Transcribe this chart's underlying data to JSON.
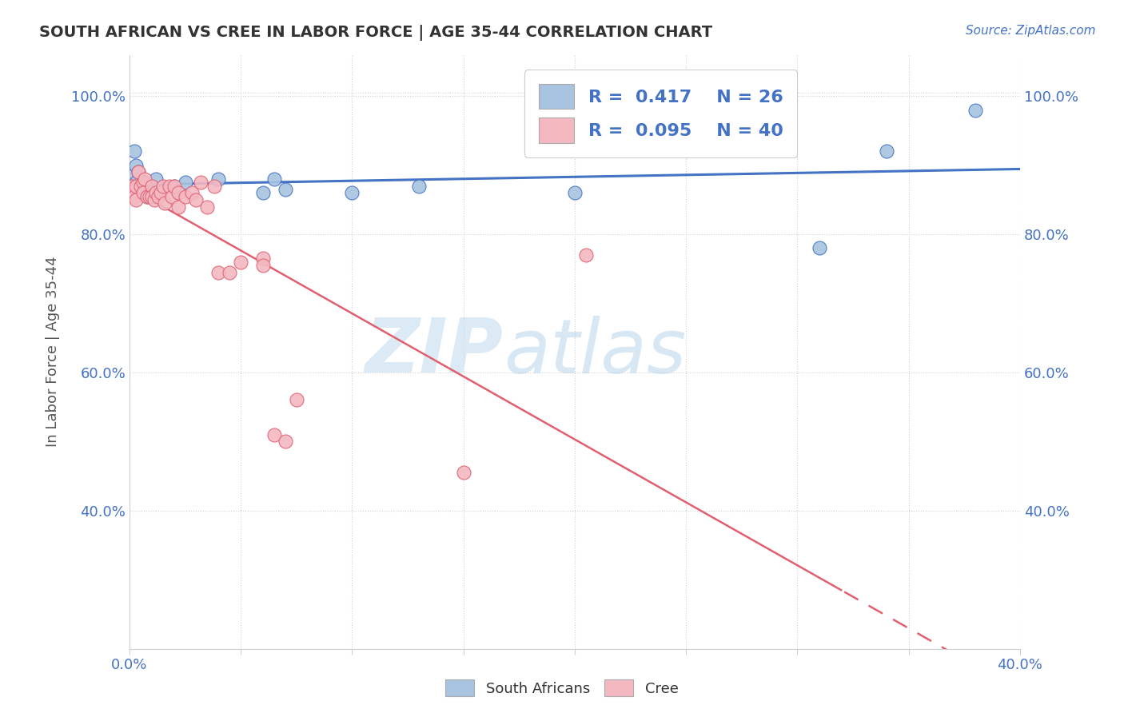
{
  "title": "SOUTH AFRICAN VS CREE IN LABOR FORCE | AGE 35-44 CORRELATION CHART",
  "source_text": "Source: ZipAtlas.com",
  "ylabel": "In Labor Force | Age 35-44",
  "xlim": [
    0.0,
    0.4
  ],
  "ylim": [
    0.2,
    1.06
  ],
  "x_ticks": [
    0.0,
    0.05,
    0.1,
    0.15,
    0.2,
    0.25,
    0.3,
    0.35,
    0.4
  ],
  "y_ticks": [
    0.4,
    0.6,
    0.8,
    1.0
  ],
  "x_tick_labels": [
    "0.0%",
    "",
    "",
    "",
    "",
    "",
    "",
    "",
    "40.0%"
  ],
  "y_tick_labels": [
    "40.0%",
    "60.0%",
    "80.0%",
    "100.0%"
  ],
  "sa_R": 0.417,
  "sa_N": 26,
  "cree_R": 0.095,
  "cree_N": 40,
  "sa_color": "#a8c4e0",
  "sa_line_color": "#4472c4",
  "cree_color": "#f4b8c1",
  "cree_line_color": "#e06070",
  "legend_label_sa": "South Africans",
  "legend_label_cree": "Cree",
  "watermark_zip": "ZIP",
  "watermark_atlas": "atlas",
  "sa_x": [
    0.001,
    0.002,
    0.002,
    0.003,
    0.003,
    0.004,
    0.005,
    0.005,
    0.006,
    0.007,
    0.008,
    0.009,
    0.01,
    0.012,
    0.02,
    0.025,
    0.04,
    0.06,
    0.065,
    0.07,
    0.1,
    0.13,
    0.2,
    0.31,
    0.34,
    0.38
  ],
  "sa_y": [
    0.885,
    0.92,
    0.87,
    0.9,
    0.875,
    0.89,
    0.87,
    0.86,
    0.875,
    0.86,
    0.855,
    0.86,
    0.87,
    0.88,
    0.87,
    0.875,
    0.88,
    0.86,
    0.88,
    0.865,
    0.86,
    0.87,
    0.86,
    0.78,
    0.92,
    0.98
  ],
  "cree_x": [
    0.001,
    0.002,
    0.003,
    0.003,
    0.004,
    0.005,
    0.006,
    0.006,
    0.007,
    0.008,
    0.009,
    0.01,
    0.01,
    0.011,
    0.012,
    0.013,
    0.014,
    0.015,
    0.016,
    0.018,
    0.019,
    0.02,
    0.022,
    0.022,
    0.025,
    0.028,
    0.03,
    0.032,
    0.035,
    0.038,
    0.04,
    0.045,
    0.05,
    0.06,
    0.06,
    0.065,
    0.07,
    0.075,
    0.15,
    0.205
  ],
  "cree_y": [
    0.87,
    0.855,
    0.87,
    0.85,
    0.89,
    0.87,
    0.875,
    0.86,
    0.88,
    0.855,
    0.855,
    0.87,
    0.855,
    0.85,
    0.86,
    0.855,
    0.86,
    0.87,
    0.845,
    0.87,
    0.855,
    0.87,
    0.86,
    0.84,
    0.855,
    0.86,
    0.85,
    0.875,
    0.84,
    0.87,
    0.745,
    0.745,
    0.76,
    0.765,
    0.755,
    0.51,
    0.5,
    0.56,
    0.455,
    0.77
  ]
}
